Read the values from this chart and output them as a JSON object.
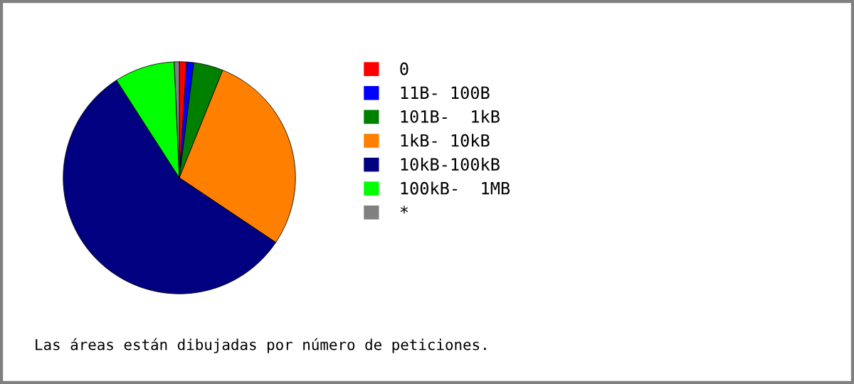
{
  "chart_data": {
    "type": "pie",
    "categories": [
      "0",
      "11B- 100B",
      "101B-  1kB",
      "1kB- 10kB",
      "10kB-100kB",
      "100kB-  1MB",
      "*"
    ],
    "values": [
      1,
      1,
      4.1,
      28.3,
      56.5,
      8.4,
      0.7
    ],
    "colors": [
      "#ff0000",
      "#0000ff",
      "#008000",
      "#ff8000",
      "#000080",
      "#00ff00",
      "#808080"
    ],
    "legend": "right",
    "annotations": [
      "Las áreas están dibujadas por número de peticiones."
    ]
  }
}
